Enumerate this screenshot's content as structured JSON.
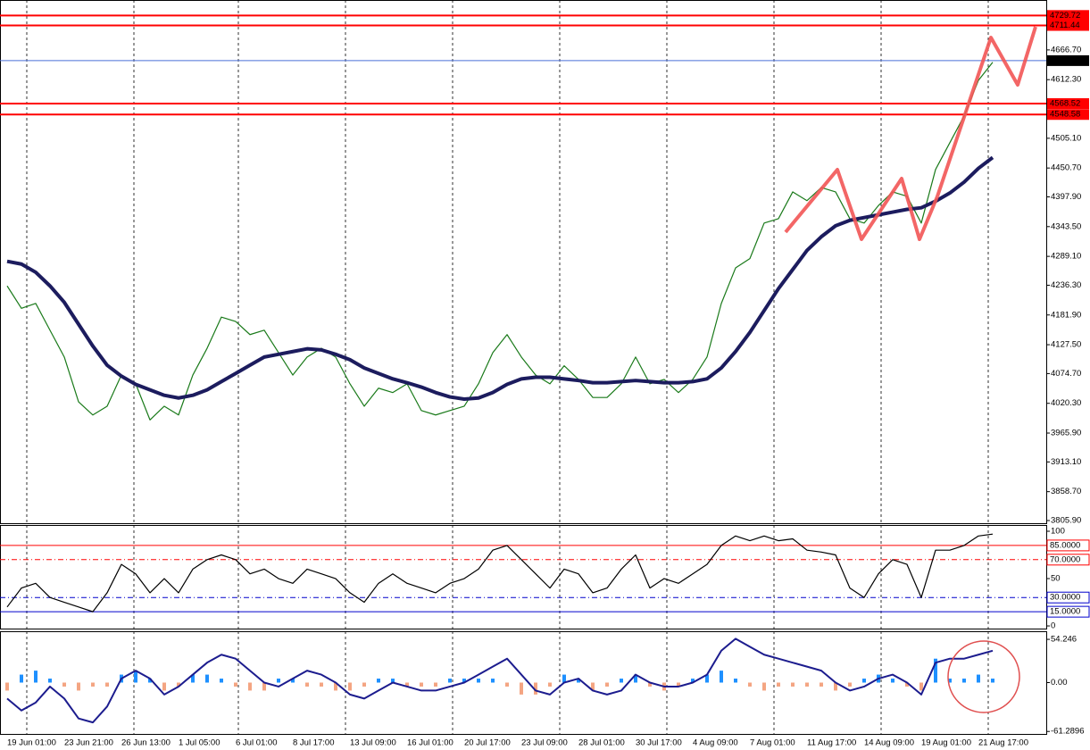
{
  "chart_data": [
    {
      "type": "line",
      "categories": [
        "19 Jun 01:00",
        null,
        null,
        null,
        "23 Jun 21:00",
        null,
        null,
        null,
        "26 Jun 13:00",
        null,
        null,
        null,
        "1 Jul 05:00",
        null,
        null,
        null,
        "6 Jul 01:00",
        null,
        null,
        null,
        "8 Jul 17:00",
        null,
        null,
        null,
        "13 Jul 09:00",
        null,
        null,
        null,
        "16 Jul 01:00",
        null,
        null,
        null,
        "20 Jul 17:00",
        null,
        null,
        null,
        "23 Jul 09:00",
        null,
        null,
        null,
        "28 Jul 01:00",
        null,
        null,
        null,
        "30 Jul 17:00",
        null,
        null,
        null,
        "4 Aug 09:00",
        null,
        null,
        null,
        "7 Aug 01:00",
        null,
        null,
        null,
        "11 Aug 17:00",
        null,
        null,
        null,
        "14 Aug 09:00",
        null,
        null,
        null,
        "19 Aug 01:00",
        null,
        null,
        null,
        "21 Aug 17:00",
        null
      ],
      "series": [
        {
          "name": "Close",
          "color": "#1a7a1a",
          "values": [
            4235,
            4194,
            4203,
            4154,
            4105,
            4023,
            3999,
            4015,
            4072,
            4056,
            3990,
            4015,
            3999,
            4072,
            4121,
            4178,
            4170,
            4146,
            4154,
            4113,
            4072,
            4105,
            4121,
            4105,
            4056,
            4015,
            4048,
            4040,
            4056,
            4007,
            3999,
            4007,
            4015,
            4056,
            4113,
            4146,
            4105,
            4072,
            4056,
            4089,
            4064,
            4031,
            4031,
            4056,
            4105,
            4056,
            4064,
            4040,
            4064,
            4105,
            4203,
            4268,
            4285,
            4350,
            4358,
            4407,
            4391,
            4415,
            4407,
            4358,
            4350,
            4382,
            4407,
            4399,
            4350,
            4448,
            4497,
            4546,
            4611,
            4644
          ]
        },
        {
          "name": "MA",
          "color": "#1c1c5e",
          "values": [
            4280,
            4275,
            4260,
            4235,
            4205,
            4165,
            4125,
            4090,
            4070,
            4055,
            4045,
            4035,
            4030,
            4035,
            4045,
            4060,
            4075,
            4090,
            4105,
            4110,
            4115,
            4120,
            4118,
            4110,
            4100,
            4085,
            4075,
            4065,
            4058,
            4050,
            4040,
            4032,
            4028,
            4030,
            4040,
            4055,
            4065,
            4068,
            4068,
            4065,
            4062,
            4058,
            4058,
            4060,
            4062,
            4060,
            4058,
            4058,
            4060,
            4065,
            4085,
            4115,
            4150,
            4190,
            4230,
            4265,
            4300,
            4325,
            4345,
            4355,
            4360,
            4365,
            4370,
            4375,
            4378,
            4390,
            4405,
            4425,
            4450,
            4470
          ]
        }
      ],
      "ylim": [
        3801,
        4758
      ],
      "yticks": [
        {
          "value": 3805.9,
          "label": "3805.90"
        },
        {
          "value": 3858.7,
          "label": "3858.70"
        },
        {
          "value": 3913.1,
          "label": "3913.10"
        },
        {
          "value": 3965.9,
          "label": "3965.90"
        },
        {
          "value": 4020.3,
          "label": "4020.30"
        },
        {
          "value": 4074.7,
          "label": "4074.70"
        },
        {
          "value": 4127.5,
          "label": "4127.50"
        },
        {
          "value": 4181.9,
          "label": "4181.90"
        },
        {
          "value": 4236.3,
          "label": "4236.30"
        },
        {
          "value": 4289.1,
          "label": "4289.10"
        },
        {
          "value": 4343.5,
          "label": "4343.50"
        },
        {
          "value": 4397.9,
          "label": "4397.90"
        },
        {
          "value": 4450.7,
          "label": "4450.70"
        },
        {
          "value": 4505.1,
          "label": "4505.10"
        },
        {
          "value": 4612.3,
          "label": "4612.30"
        },
        {
          "value": 4666.7,
          "label": "4666.70"
        }
      ],
      "levels": [
        {
          "value": 4729.72,
          "color": "#ff0000"
        },
        {
          "value": 4711.44,
          "color": "#ff0000"
        },
        {
          "value": 4647.12,
          "color": "#000000"
        },
        {
          "value": 4568.52,
          "color": "#ff0000"
        },
        {
          "value": 4548.58,
          "color": "#ff0000"
        }
      ]
    },
    {
      "type": "line",
      "series": [
        {
          "name": "RSI",
          "color": "#000000",
          "values": [
            20,
            40,
            45,
            30,
            25,
            20,
            15,
            35,
            65,
            55,
            35,
            50,
            35,
            60,
            70,
            75,
            70,
            55,
            60,
            50,
            45,
            60,
            55,
            50,
            35,
            25,
            45,
            55,
            45,
            40,
            35,
            45,
            50,
            60,
            80,
            85,
            70,
            55,
            40,
            60,
            55,
            35,
            40,
            60,
            75,
            40,
            50,
            45,
            55,
            65,
            85,
            95,
            90,
            95,
            90,
            92,
            80,
            78,
            75,
            40,
            30,
            55,
            70,
            65,
            30,
            80,
            80,
            85,
            95,
            97
          ]
        }
      ],
      "ylim": [
        -2.8,
        106.6
      ],
      "yticks": [
        100,
        50,
        0
      ],
      "levels": [
        {
          "value": 85,
          "label": "85.0000",
          "color": "#ff0000",
          "style": "solid"
        },
        {
          "value": 70,
          "label": "70.0000",
          "color": "#ff0000",
          "style": "dashdot"
        },
        {
          "value": 30,
          "label": "30.0000",
          "color": "#0000cc",
          "style": "dashdot"
        },
        {
          "value": 15,
          "label": "15.0000",
          "color": "#0000cc",
          "style": "solid"
        }
      ]
    },
    {
      "type": "combo",
      "histogram": {
        "positive_color": "#1e90ff",
        "negative_color": "#f4a582",
        "values": [
          -10,
          10,
          15,
          5,
          -5,
          -10,
          -5,
          -5,
          10,
          15,
          5,
          -10,
          -5,
          10,
          10,
          5,
          -5,
          -10,
          -10,
          5,
          5,
          -5,
          -5,
          -10,
          -10,
          -5,
          5,
          5,
          -5,
          -5,
          -5,
          5,
          5,
          5,
          5,
          -5,
          -15,
          -15,
          -5,
          10,
          5,
          -10,
          -5,
          5,
          10,
          -5,
          -10,
          -5,
          5,
          10,
          15,
          5,
          -5,
          -10,
          -5,
          -5,
          -5,
          -5,
          -10,
          -5,
          5,
          10,
          5,
          -5,
          -10,
          30,
          5,
          5,
          10,
          5
        ]
      },
      "series": [
        {
          "name": "MACD",
          "color": "#1c1c8e",
          "values": [
            -20,
            -35,
            -25,
            -5,
            -20,
            -45,
            -50,
            -30,
            5,
            15,
            5,
            -15,
            -5,
            10,
            25,
            35,
            30,
            15,
            0,
            -5,
            5,
            15,
            10,
            0,
            -15,
            -20,
            -10,
            0,
            -5,
            -10,
            -10,
            -5,
            0,
            10,
            20,
            30,
            10,
            -10,
            -15,
            0,
            5,
            -10,
            -15,
            -10,
            10,
            0,
            -5,
            -5,
            0,
            10,
            40,
            55,
            45,
            35,
            30,
            25,
            20,
            15,
            0,
            -10,
            -5,
            5,
            10,
            0,
            -15,
            25,
            30,
            30,
            35,
            40
          ]
        }
      ],
      "ylim": [
        -64.4,
        64.4
      ],
      "yticks": [
        54.246,
        {
          "value": 0,
          "label": "0.00"
        },
        -61.2896
      ]
    }
  ]
}
